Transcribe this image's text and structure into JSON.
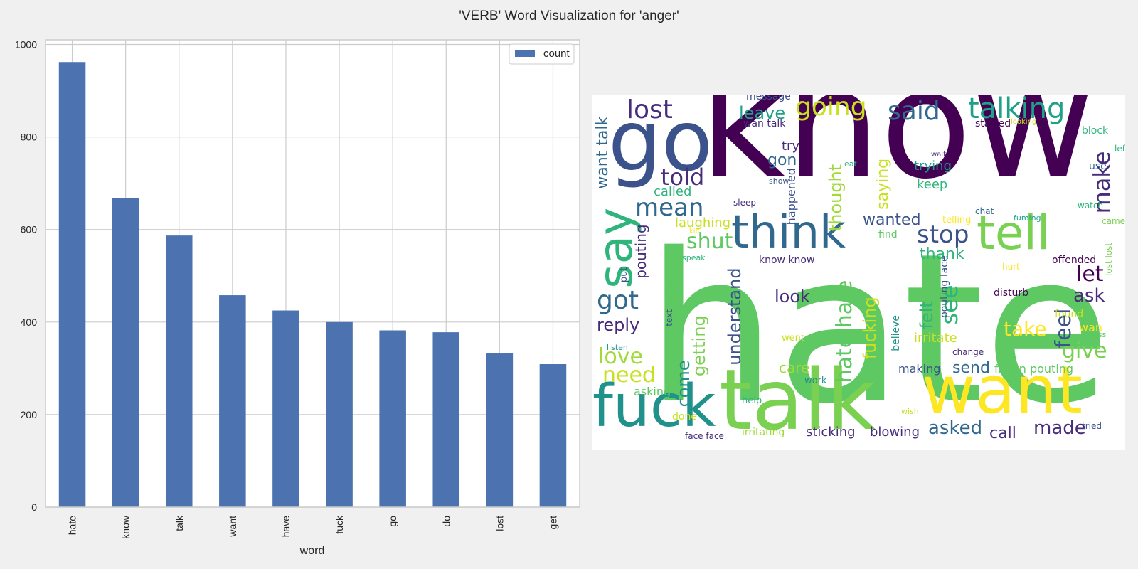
{
  "figure": {
    "title": "'VERB' Word Visualization for 'anger'"
  },
  "chart_data": {
    "type": "bar",
    "categories": [
      "hate",
      "know",
      "talk",
      "want",
      "have",
      "fuck",
      "go",
      "do",
      "lost",
      "get"
    ],
    "series": [
      {
        "name": "count",
        "values": [
          962,
          668,
          587,
          458,
          425,
          400,
          382,
          378,
          332,
          309
        ],
        "color": "#4c72b0"
      }
    ],
    "xlabel": "word",
    "ylabel": "",
    "ylim": [
      0,
      1010
    ],
    "yticks": [
      0,
      200,
      400,
      600,
      800,
      1000
    ],
    "grid": true,
    "legend_placement": "top-right"
  },
  "wordcloud": {
    "words": [
      {
        "text": "hate",
        "color": "#5ec962"
      },
      {
        "text": "know",
        "color": "#440154"
      },
      {
        "text": "talk",
        "color": "#7ad151"
      },
      {
        "text": "want",
        "color": "#fde725"
      },
      {
        "text": "go",
        "color": "#3b528b"
      },
      {
        "text": "fuck",
        "color": "#21918c"
      },
      {
        "text": "think",
        "color": "#31688e"
      },
      {
        "text": "tell",
        "color": "#7ad151"
      },
      {
        "text": "say",
        "color": "#2fb47c"
      },
      {
        "text": "talking",
        "color": "#1fa187"
      },
      {
        "text": "going",
        "color": "#c8e020"
      },
      {
        "text": "said",
        "color": "#31688e"
      },
      {
        "text": "lost",
        "color": "#472d7b"
      },
      {
        "text": "leave",
        "color": "#1fa187"
      },
      {
        "text": "mean",
        "color": "#31688e"
      },
      {
        "text": "told",
        "color": "#472d7b"
      },
      {
        "text": "got",
        "color": "#31688e"
      },
      {
        "text": "shut",
        "color": "#5ec962"
      },
      {
        "text": "stop",
        "color": "#3b528b"
      },
      {
        "text": "make",
        "color": "#472d7b"
      },
      {
        "text": "love",
        "color": "#a0da39"
      },
      {
        "text": "need",
        "color": "#c8e020"
      },
      {
        "text": "reply",
        "color": "#482878"
      },
      {
        "text": "see",
        "color": "#2fb47c"
      },
      {
        "text": "let",
        "color": "#440154"
      },
      {
        "text": "ask",
        "color": "#472d7b"
      },
      {
        "text": "feel",
        "color": "#3b528b"
      },
      {
        "text": "take",
        "color": "#fde725"
      },
      {
        "text": "give",
        "color": "#7ad151"
      },
      {
        "text": "look",
        "color": "#472d7b"
      },
      {
        "text": "thank",
        "color": "#2fb47c"
      },
      {
        "text": "come",
        "color": "#21918c"
      },
      {
        "text": "understand",
        "color": "#3b528b"
      },
      {
        "text": "getting",
        "color": "#7ad151"
      },
      {
        "text": "hate hate",
        "color": "#5ec962"
      },
      {
        "text": "fucking",
        "color": "#c8e020"
      },
      {
        "text": "felt",
        "color": "#2fb47c"
      },
      {
        "text": "care",
        "color": "#a0da39"
      },
      {
        "text": "send",
        "color": "#31688e"
      },
      {
        "text": "asked",
        "color": "#31688e"
      },
      {
        "text": "call",
        "color": "#472d7b"
      },
      {
        "text": "made",
        "color": "#472d7b"
      },
      {
        "text": "want talk",
        "color": "#31688e"
      },
      {
        "text": "wanted",
        "color": "#3b528b"
      },
      {
        "text": "gon",
        "color": "#31688e"
      },
      {
        "text": "thought",
        "color": "#a0da39"
      },
      {
        "text": "saying",
        "color": "#c8e020"
      },
      {
        "text": "trying",
        "color": "#1fa187"
      },
      {
        "text": "keep",
        "color": "#2fb47c"
      },
      {
        "text": "try",
        "color": "#482878"
      },
      {
        "text": "called",
        "color": "#2fb47c"
      },
      {
        "text": "laughing",
        "color": "#c8e020"
      },
      {
        "text": "pouting",
        "color": "#472d7b"
      },
      {
        "text": "irritate",
        "color": "#c8e020"
      },
      {
        "text": "frown pouting",
        "color": "#5ec962"
      },
      {
        "text": "sticking",
        "color": "#472d7b"
      },
      {
        "text": "blowing",
        "color": "#472d7b"
      },
      {
        "text": "making",
        "color": "#3b528b"
      },
      {
        "text": "asking",
        "color": "#5ec962"
      },
      {
        "text": "irritating",
        "color": "#a0da39"
      },
      {
        "text": "face face",
        "color": "#472d7b"
      },
      {
        "text": "message",
        "color": "#3b528b"
      },
      {
        "text": "wan talk",
        "color": "#472d7b"
      },
      {
        "text": "started",
        "color": "#440154"
      },
      {
        "text": "block",
        "color": "#2fb47c"
      },
      {
        "text": "left",
        "color": "#2fb47c"
      },
      {
        "text": "use",
        "color": "#31688e"
      },
      {
        "text": "watch",
        "color": "#2fb47c"
      },
      {
        "text": "came",
        "color": "#7ad151"
      },
      {
        "text": "offended",
        "color": "#440154"
      },
      {
        "text": "disturb",
        "color": "#440154"
      },
      {
        "text": "found",
        "color": "#c8e020"
      },
      {
        "text": "wan",
        "color": "#fde725"
      },
      {
        "text": "guess",
        "color": "#5ec962"
      },
      {
        "text": "tried",
        "color": "#3b528b"
      },
      {
        "text": "change",
        "color": "#482878"
      },
      {
        "text": "hurt",
        "color": "#fde725"
      },
      {
        "text": "believe",
        "color": "#21918c"
      },
      {
        "text": "pouting face",
        "color": "#3b528b"
      },
      {
        "text": "know know",
        "color": "#472d7b"
      },
      {
        "text": "happened",
        "color": "#3b528b"
      },
      {
        "text": "find",
        "color": "#5ec962"
      },
      {
        "text": "telling",
        "color": "#fde725"
      },
      {
        "text": "chat",
        "color": "#31688e"
      },
      {
        "text": "fuming",
        "color": "#1fa187"
      },
      {
        "text": "lost lost",
        "color": "#7ad151"
      },
      {
        "text": "sleep",
        "color": "#472d7b"
      },
      {
        "text": "kill",
        "color": "#fde725"
      },
      {
        "text": "speak",
        "color": "#2fb47c"
      },
      {
        "text": "put",
        "color": "#3b528b"
      },
      {
        "text": "text",
        "color": "#3b528b"
      },
      {
        "text": "listen",
        "color": "#21918c"
      },
      {
        "text": "went",
        "color": "#c8e020"
      },
      {
        "text": "work",
        "color": "#21918c"
      },
      {
        "text": "help",
        "color": "#2fb47c"
      },
      {
        "text": "done",
        "color": "#c8e020"
      },
      {
        "text": "wish",
        "color": "#c8e020"
      },
      {
        "text": "wait",
        "color": "#472d7b"
      },
      {
        "text": "eat",
        "color": "#2fb47c"
      },
      {
        "text": "show",
        "color": "#3b528b"
      },
      {
        "text": "looking",
        "color": "#c8e020"
      }
    ]
  }
}
